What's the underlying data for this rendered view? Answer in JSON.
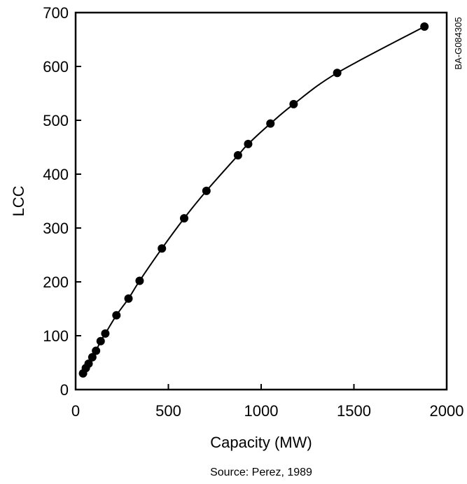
{
  "chart_data": {
    "type": "scatter",
    "title": "",
    "xlabel": "Capacity (MW)",
    "ylabel": "LCC",
    "xlim": [
      0,
      2000
    ],
    "ylim": [
      0,
      700
    ],
    "x_ticks": [
      0,
      500,
      1000,
      1500,
      2000
    ],
    "x_tick_labels": [
      "0",
      "500",
      "1000",
      "1500",
      "2000"
    ],
    "y_ticks": [
      0,
      100,
      200,
      300,
      400,
      500,
      600,
      700
    ],
    "y_tick_labels": [
      "0",
      "100",
      "200",
      "300",
      "400",
      "500",
      "600",
      "700"
    ],
    "grid": false,
    "legend": "none",
    "series": [
      {
        "points": [
          {
            "x": 40,
            "y": 30
          },
          {
            "x": 55,
            "y": 40
          },
          {
            "x": 70,
            "y": 48
          },
          {
            "x": 90,
            "y": 60
          },
          {
            "x": 110,
            "y": 72
          },
          {
            "x": 135,
            "y": 90
          },
          {
            "x": 160,
            "y": 104
          },
          {
            "x": 220,
            "y": 138
          },
          {
            "x": 285,
            "y": 169
          },
          {
            "x": 345,
            "y": 202
          },
          {
            "x": 465,
            "y": 262
          },
          {
            "x": 585,
            "y": 318
          },
          {
            "x": 705,
            "y": 369
          },
          {
            "x": 875,
            "y": 435
          },
          {
            "x": 930,
            "y": 456
          },
          {
            "x": 1050,
            "y": 494
          },
          {
            "x": 1175,
            "y": 530
          },
          {
            "x": 1410,
            "y": 588
          },
          {
            "x": 1880,
            "y": 674
          }
        ]
      }
    ],
    "curve": "smooth fit through all points",
    "marker_color": "#000000",
    "line_color": "#000000",
    "source": "Source: Perez, 1989",
    "side_code": "BA-G084305"
  }
}
